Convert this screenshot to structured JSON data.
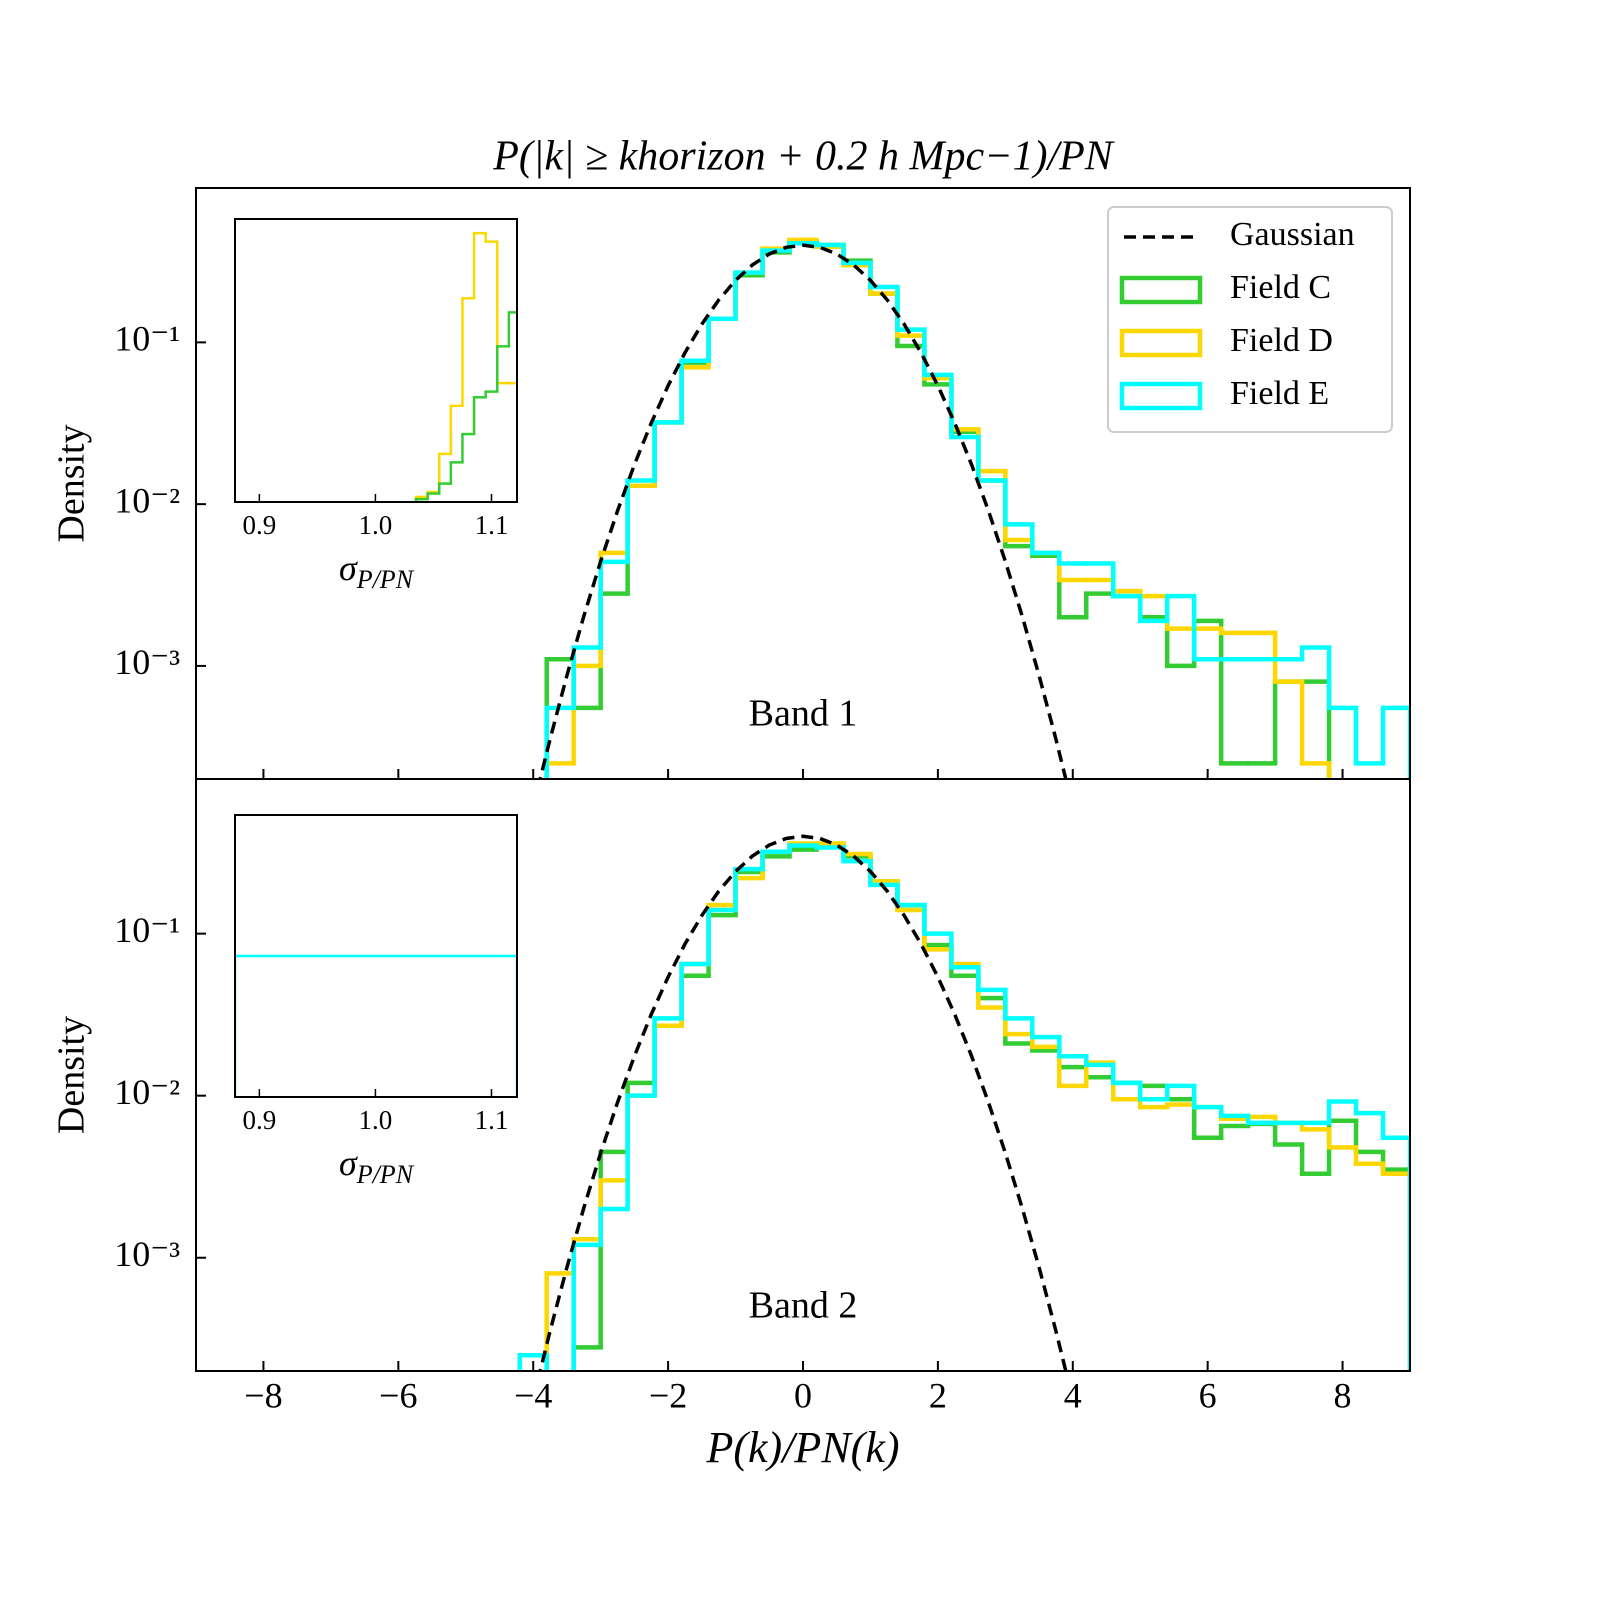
{
  "chart_data": [
    {
      "type": "histogram",
      "title": "P(|k| ≥ khorizon + 0.2 h Mpc−1)/PN",
      "ylabel": "Density",
      "annotation": "Band 1",
      "log_y": true,
      "legend": "upper right",
      "xlim": [
        -9,
        9
      ],
      "ylim": [
        0.0002,
        0.9
      ],
      "yticks": [
        {
          "value": 0.001,
          "label": "10⁻³"
        },
        {
          "value": 0.01,
          "label": "10⁻²"
        },
        {
          "value": 0.1,
          "label": "10⁻¹"
        }
      ],
      "bins": [
        -4.2,
        -3.8,
        -3.4,
        -3,
        -2.6,
        -2.2,
        -1.8,
        -1.4,
        -1,
        -0.6,
        -0.2,
        0.2,
        0.6,
        1,
        1.4,
        1.8,
        2.2,
        2.6,
        3,
        3.4,
        3.8,
        4.2,
        4.6,
        5,
        5.4,
        5.8,
        6.2,
        6.6,
        7,
        7.4,
        7.8,
        8.2,
        8.6,
        9
      ],
      "curve": {
        "name": "Gaussian",
        "color": "#000000",
        "x": [
          -4,
          -3.75,
          -3.5,
          -3.25,
          -3,
          -2.75,
          -2.5,
          -2.25,
          -2,
          -1.75,
          -1.5,
          -1.25,
          -1,
          -0.75,
          -0.5,
          -0.25,
          0,
          0.25,
          0.5,
          0.75,
          1,
          1.25,
          1.5,
          1.75,
          2,
          2.25,
          2.5,
          2.75,
          3,
          3.25,
          3.5,
          3.75,
          4
        ],
        "values": [
          0.000134,
          0.000353,
          0.000873,
          0.00203,
          0.00443,
          0.00909,
          0.01753,
          0.03174,
          0.05399,
          0.08628,
          0.12952,
          0.18265,
          0.24197,
          0.30114,
          0.35207,
          0.38667,
          0.39894,
          0.38667,
          0.35207,
          0.30114,
          0.24197,
          0.18265,
          0.12952,
          0.08628,
          0.05399,
          0.03174,
          0.01753,
          0.00909,
          0.00443,
          0.00203,
          0.000873,
          0.000353,
          0.000134
        ]
      },
      "series": [
        {
          "name": "Field C",
          "color": "#33cc33",
          "values": [
            null,
            0.0011,
            0.00055,
            0.0028,
            0.013,
            0.032,
            0.075,
            0.14,
            0.26,
            0.36,
            0.42,
            0.4,
            0.32,
            0.2,
            0.095,
            0.055,
            0.028,
            0.014,
            0.0055,
            0.0048,
            0.002,
            0.0028,
            0.0027,
            0.002,
            0.001,
            0.0019,
            0.00025,
            0.00025,
            0.0008,
            0.0008,
            null,
            null,
            null
          ]
        },
        {
          "name": "Field D",
          "color": "#ffd700",
          "values": [
            null,
            0.00025,
            0.001,
            0.005,
            0.013,
            0.032,
            0.07,
            0.14,
            0.27,
            0.38,
            0.43,
            0.39,
            0.3,
            0.2,
            0.11,
            0.06,
            0.029,
            0.016,
            0.006,
            0.005,
            0.0034,
            0.0034,
            0.0029,
            0.0027,
            0.0017,
            0.0017,
            0.0016,
            0.0016,
            0.0008,
            0.00025,
            null,
            null,
            null
          ]
        },
        {
          "name": "Field E",
          "color": "#00ffff",
          "values": [
            null,
            0.00055,
            0.0013,
            0.0044,
            0.014,
            0.032,
            0.077,
            0.14,
            0.27,
            0.37,
            0.41,
            0.4,
            0.31,
            0.22,
            0.12,
            0.063,
            0.026,
            0.014,
            0.0075,
            0.005,
            0.0043,
            0.0043,
            0.0027,
            0.0019,
            0.0027,
            0.0011,
            0.0011,
            0.0011,
            0.0011,
            0.0013,
            0.00055,
            0.00025,
            0.00055
          ]
        }
      ],
      "inset": {
        "type": "histogram",
        "xlabel": {
          "symbol": "σ",
          "subscript": "P/PN"
        },
        "xlim": [
          0.879,
          1.122
        ],
        "ylim": [
          0,
          1
        ],
        "xticks": [
          0.9,
          {
            "value": 1.0,
            "label": "1.0"
          },
          1.1
        ],
        "bins": [
          1.035,
          1.045,
          1.055,
          1.065,
          1.075,
          1.085,
          1.095,
          1.105,
          1.115,
          1.125
        ],
        "series": [
          {
            "color": "#ffd700",
            "values": [
              0.018,
              0.035,
              0.17,
              0.34,
              0.72,
              0.95,
              0.92,
              0.42,
              0.42
            ]
          },
          {
            "color": "#33cc33",
            "values": [
              0.01,
              0.03,
              0.065,
              0.14,
              0.24,
              0.37,
              0.39,
              0.55,
              0.67
            ]
          }
        ]
      }
    },
    {
      "type": "histogram",
      "xlabel": "P(k)/PN(k)",
      "ylabel": "Density",
      "annotation": "Band 2",
      "log_y": true,
      "xlim": [
        -9,
        9
      ],
      "ylim": [
        0.0002,
        0.9
      ],
      "xticks": [
        {
          "value": -8,
          "label": "−8"
        },
        {
          "value": -6,
          "label": "−6"
        },
        {
          "value": -4,
          "label": "−4"
        },
        {
          "value": -2,
          "label": "−2"
        },
        0,
        2,
        4,
        6,
        8
      ],
      "yticks": [
        {
          "value": 0.001,
          "label": "10⁻³"
        },
        {
          "value": 0.01,
          "label": "10⁻²"
        },
        {
          "value": 0.1,
          "label": "10⁻¹"
        }
      ],
      "bins": [
        -4.2,
        -3.8,
        -3.4,
        -3,
        -2.6,
        -2.2,
        -1.8,
        -1.4,
        -1,
        -0.6,
        -0.2,
        0.2,
        0.6,
        1,
        1.4,
        1.8,
        2.2,
        2.6,
        3,
        3.4,
        3.8,
        4.2,
        4.6,
        5,
        5.4,
        5.8,
        6.2,
        6.6,
        7,
        7.4,
        7.8,
        8.2,
        8.6,
        9
      ],
      "curve": {
        "color": "#000000",
        "x": [
          -4,
          -3.75,
          -3.5,
          -3.25,
          -3,
          -2.75,
          -2.5,
          -2.25,
          -2,
          -1.75,
          -1.5,
          -1.25,
          -1,
          -0.75,
          -0.5,
          -0.25,
          0,
          0.25,
          0.5,
          0.75,
          1,
          1.25,
          1.5,
          1.75,
          2,
          2.25,
          2.5,
          2.75,
          3,
          3.25,
          3.5,
          3.75,
          4
        ],
        "values": [
          0.000134,
          0.000353,
          0.000873,
          0.00203,
          0.00443,
          0.00909,
          0.01753,
          0.03174,
          0.05399,
          0.08628,
          0.12952,
          0.18265,
          0.24197,
          0.30114,
          0.35207,
          0.38667,
          0.39894,
          0.38667,
          0.35207,
          0.30114,
          0.24197,
          0.18265,
          0.12952,
          0.08628,
          0.05399,
          0.03174,
          0.01753,
          0.00909,
          0.00443,
          0.00203,
          0.000873,
          0.000353,
          0.000134
        ]
      },
      "series": [
        {
          "color": "#33cc33",
          "values": [
            null,
            null,
            0.00028,
            0.0045,
            0.012,
            0.027,
            0.055,
            0.13,
            0.24,
            0.3,
            0.33,
            0.35,
            0.3,
            0.21,
            0.15,
            0.085,
            0.055,
            0.04,
            0.021,
            0.019,
            0.015,
            0.013,
            0.012,
            0.0115,
            0.0095,
            0.0055,
            0.0065,
            0.0067,
            0.005,
            0.0033,
            0.007,
            0.0045,
            0.0035
          ]
        },
        {
          "color": "#ffd700",
          "values": [
            null,
            0.0008,
            0.0013,
            0.003,
            0.01,
            0.027,
            0.065,
            0.15,
            0.22,
            0.32,
            0.36,
            0.36,
            0.31,
            0.21,
            0.14,
            0.08,
            0.065,
            0.035,
            0.024,
            0.02,
            0.0115,
            0.016,
            0.0095,
            0.0085,
            0.0088,
            0.0085,
            0.0072,
            0.0074,
            0.0068,
            0.0062,
            0.0048,
            0.0038,
            0.0033
          ]
        },
        {
          "color": "#00ffff",
          "values": [
            0.00025,
            null,
            0.0012,
            0.002,
            0.01,
            0.03,
            0.065,
            0.14,
            0.25,
            0.32,
            0.35,
            0.34,
            0.28,
            0.2,
            0.15,
            0.1,
            0.062,
            0.045,
            0.03,
            0.023,
            0.0175,
            0.0155,
            0.012,
            0.0095,
            0.0115,
            0.0085,
            0.0075,
            0.0068,
            0.0068,
            0.0068,
            0.0092,
            0.0078,
            0.0055
          ]
        }
      ],
      "inset": {
        "type": "histogram",
        "xlabel": {
          "symbol": "σ",
          "subscript": "P/PN"
        },
        "xlim": [
          0.879,
          1.122
        ],
        "ylim": [
          0,
          1
        ],
        "xticks": [
          0.9,
          {
            "value": 1.0,
            "label": "1.0"
          },
          1.1
        ],
        "bins": [
          0.879,
          1.122
        ],
        "series": [
          {
            "color": "#00ffff",
            "values": [
              0.5
            ]
          }
        ]
      }
    }
  ]
}
